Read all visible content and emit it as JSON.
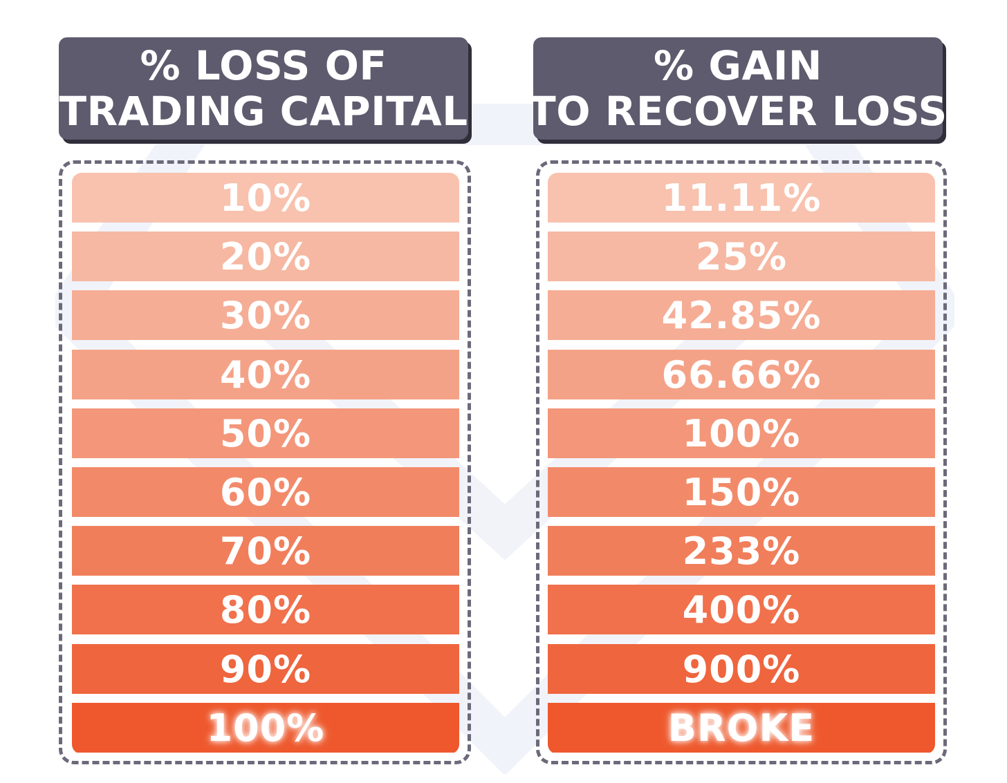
{
  "headers": {
    "left_line1": "% LOSS OF",
    "left_line2": "TRADING CAPITAL",
    "right_line1": "% GAIN",
    "right_line2": "TO RECOVER LOSS"
  },
  "rows": [
    {
      "loss": "10%",
      "gain": "11.11%",
      "color": "#f8c2ae"
    },
    {
      "loss": "20%",
      "gain": "25%",
      "color": "#f6b8a2"
    },
    {
      "loss": "30%",
      "gain": "42.85%",
      "color": "#f5ad95"
    },
    {
      "loss": "40%",
      "gain": "66.66%",
      "color": "#f4a287"
    },
    {
      "loss": "50%",
      "gain": "100%",
      "color": "#f39679"
    },
    {
      "loss": "60%",
      "gain": "150%",
      "color": "#f28a6a"
    },
    {
      "loss": "70%",
      "gain": "233%",
      "color": "#f17e5b"
    },
    {
      "loss": "80%",
      "gain": "400%",
      "color": "#f0714c"
    },
    {
      "loss": "90%",
      "gain": "900%",
      "color": "#ef653d"
    },
    {
      "loss": "100%",
      "gain": "BROKE",
      "color": "#ee582c"
    }
  ],
  "colors": {
    "header_bg": "#5d5b6d",
    "frame_border": "#6b6a7a"
  }
}
